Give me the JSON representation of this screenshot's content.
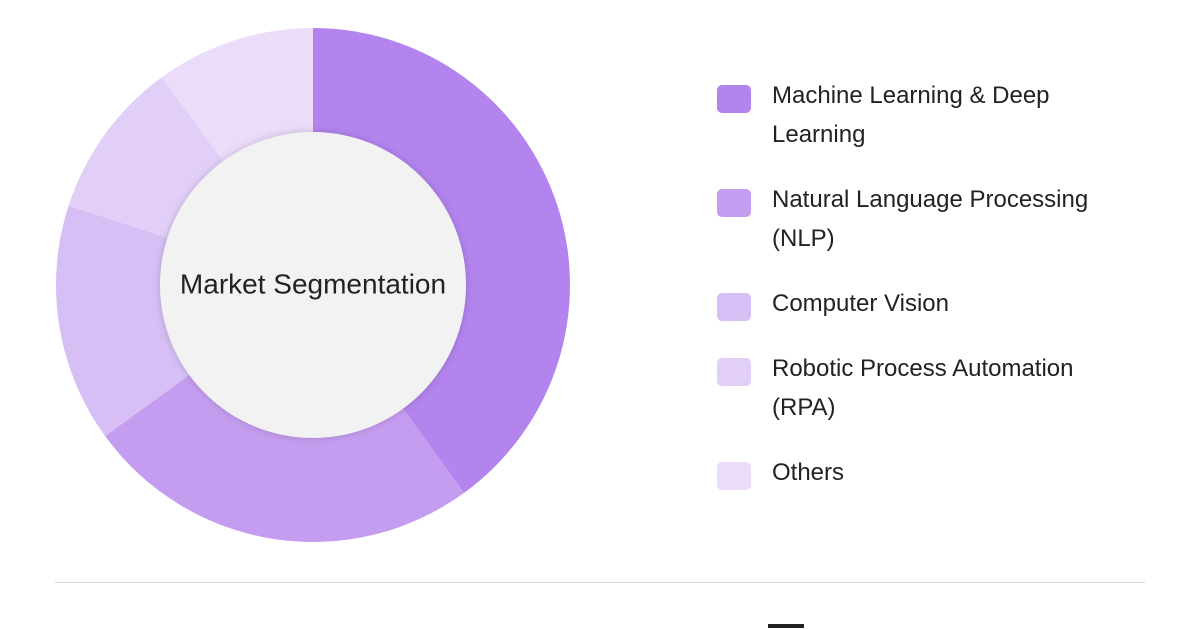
{
  "chart_data": {
    "type": "pie",
    "center_label": "Market Segmentation",
    "categories": [
      "Machine Learning & Deep Learning",
      "Natural Language Processing (NLP)",
      "Computer Vision",
      "Robotic Process Automation (RPA)",
      "Others"
    ],
    "values": [
      40,
      25,
      15,
      10,
      10
    ],
    "colors": [
      "#b384ee",
      "#c59df0",
      "#d7bff5",
      "#e2cff8",
      "#ebdcfa"
    ]
  }
}
